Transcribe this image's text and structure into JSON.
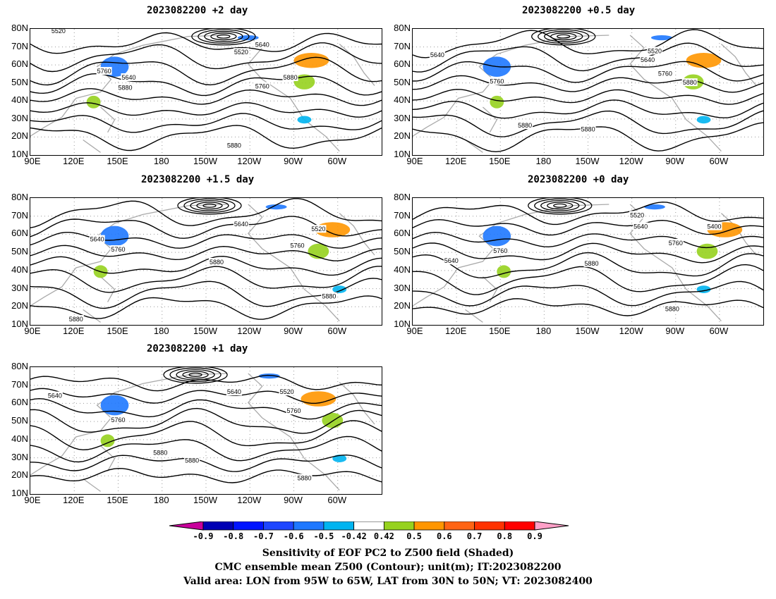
{
  "panels": [
    {
      "title": "2023082200  +2 day",
      "contour_labels": [
        "5520",
        "5640",
        "5520",
        "5760",
        "5880",
        "5640",
        "5760",
        "5880",
        "5880"
      ]
    },
    {
      "title": "2023082200  +0.5 day",
      "contour_labels": [
        "5640",
        "5520",
        "5640",
        "5760",
        "5760",
        "5880",
        "5880",
        "5880"
      ]
    },
    {
      "title": "2023082200  +1.5 day",
      "contour_labels": [
        "5640",
        "5760",
        "5640",
        "5520",
        "5760",
        "5880",
        "5880",
        "5880"
      ]
    },
    {
      "title": "2023082200  +0 day",
      "contour_labels": [
        "5520",
        "5640",
        "5400",
        "5760",
        "5760",
        "5640",
        "5880",
        "5880"
      ]
    },
    {
      "title": "2023082200  +1 day",
      "contour_labels": [
        "5640",
        "5640",
        "5520",
        "5760",
        "5760",
        "5880",
        "5880",
        "5880"
      ]
    }
  ],
  "axes": {
    "lat_labels": [
      "80N",
      "70N",
      "60N",
      "50N",
      "40N",
      "30N",
      "20N",
      "10N"
    ],
    "lon_labels": [
      "90E",
      "120E",
      "150E",
      "180",
      "150W",
      "120W",
      "90W",
      "60W"
    ]
  },
  "colorbar": {
    "ticks": [
      "-0.9",
      "-0.8",
      "-0.7",
      "-0.6",
      "-0.5",
      "-0.42",
      "0.42",
      "0.5",
      "0.6",
      "0.7",
      "0.8",
      "0.9"
    ],
    "colors": [
      "#0000b4",
      "#0014ff",
      "#1e46ff",
      "#1e78ff",
      "#00b4f0",
      "#ffffff",
      "#96d21e",
      "#ff9600",
      "#ff6414",
      "#ff3200",
      "#ff0000"
    ],
    "low_end_color": "#c8009b",
    "high_end_color": "#ffa0c8"
  },
  "footer": {
    "line1": "Sensitivity of EOF PC2 to Z500 field (Shaded)",
    "line2": "CMC ensemble mean Z500 (Contour); unit(m); IT:2023082200",
    "line3": "Valid area: LON from 95W to 65W, LAT from 30N to 50N; VT: 2023082400"
  }
}
